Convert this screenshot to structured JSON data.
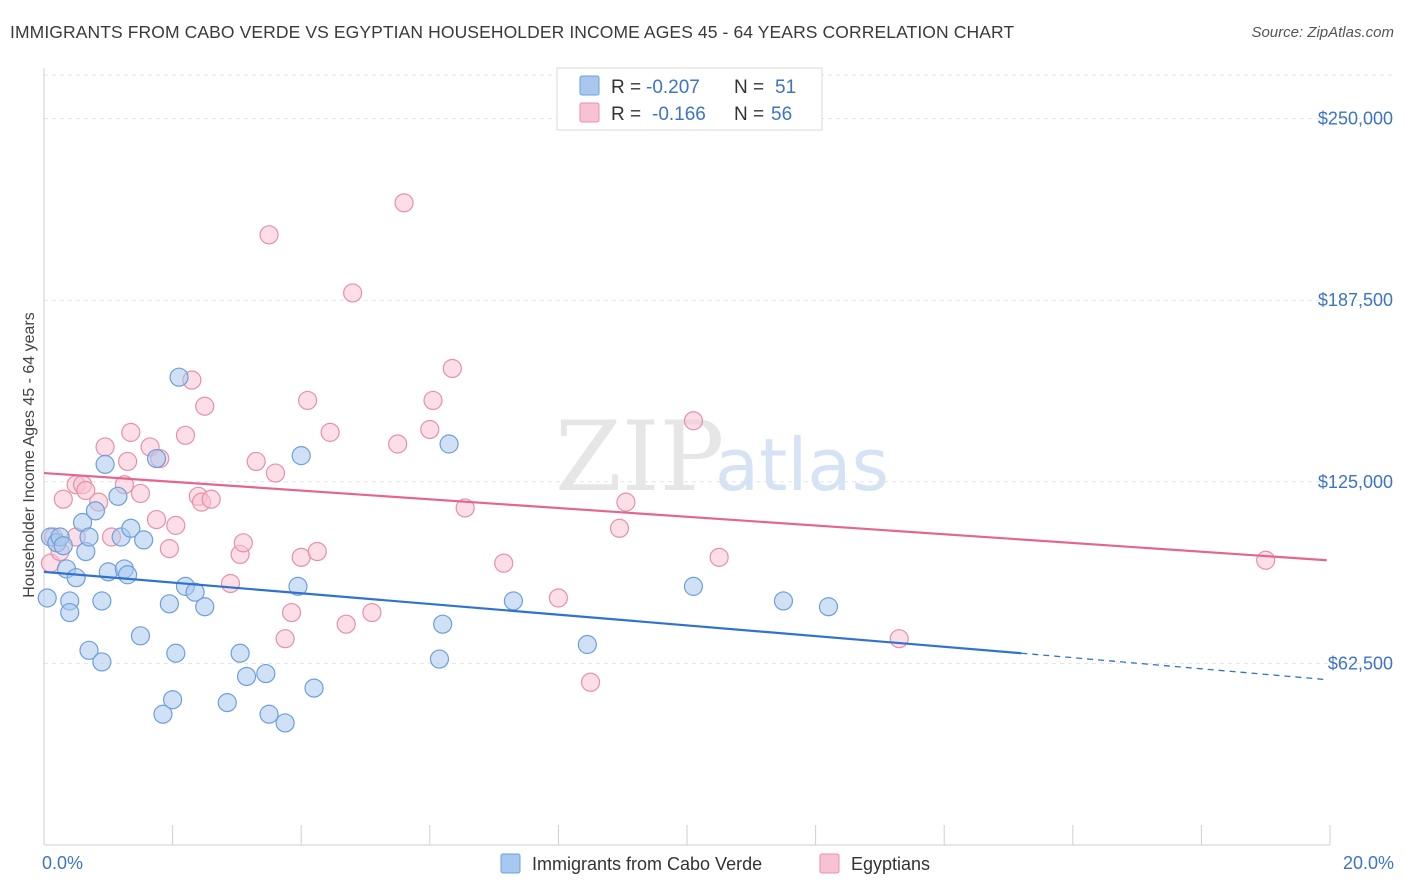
{
  "title": "IMMIGRANTS FROM CABO VERDE VS EGYPTIAN HOUSEHOLDER INCOME AGES 45 - 64 YEARS CORRELATION CHART",
  "source": "Source: ZipAtlas.com",
  "watermark": {
    "zip": "ZIP",
    "atlas": "atlas"
  },
  "legend": {
    "rows": [
      {
        "r_label": "R = ",
        "r_value": "-0.207",
        "n_label": "N = ",
        "n_value": "51",
        "color": "#a9c8ef",
        "stroke": "#6d9fdc"
      },
      {
        "r_label": "R = ",
        "r_value": "-0.166",
        "n_label": "N = ",
        "n_value": "56",
        "color": "#f7c2d1",
        "stroke": "#e890ab"
      }
    ]
  },
  "chart_data": {
    "type": "scatter",
    "title": "IMMIGRANTS FROM CABO VERDE VS EGYPTIAN HOUSEHOLDER INCOME AGES 45 - 64 YEARS CORRELATION CHART",
    "xlabel": "",
    "ylabel": "Householder Income Ages 45 - 64 years",
    "xlim": [
      0,
      20
    ],
    "ylim": [
      0,
      265000
    ],
    "x_tick_labels": [
      "0.0%",
      "20.0%"
    ],
    "y_ticks": [
      62500,
      125000,
      187500,
      250000
    ],
    "y_tick_labels": [
      "$62,500",
      "$125,000",
      "$187,500",
      "$250,000"
    ],
    "grid": true,
    "legend_position": "top-center",
    "series": [
      {
        "name": "Immigrants from Cabo Verde",
        "color": "#a9c8ef",
        "stroke": "#6d9fdc",
        "line_color": "#2f72cf",
        "trend": {
          "x0": 0,
          "y0": 94000,
          "x1": 15.2,
          "y1": 66000,
          "dash_to_x": 19.9,
          "dash_to_y": 57000
        },
        "points": [
          [
            0.05,
            85000
          ],
          [
            0.1,
            106000
          ],
          [
            0.2,
            104000
          ],
          [
            0.25,
            106000
          ],
          [
            0.3,
            103000
          ],
          [
            0.35,
            95000
          ],
          [
            0.4,
            84000
          ],
          [
            0.4,
            80000
          ],
          [
            0.5,
            92000
          ],
          [
            0.6,
            111000
          ],
          [
            0.65,
            101000
          ],
          [
            0.7,
            106000
          ],
          [
            0.7,
            67000
          ],
          [
            0.8,
            115000
          ],
          [
            0.9,
            84000
          ],
          [
            0.9,
            63000
          ],
          [
            0.95,
            131000
          ],
          [
            1.0,
            94000
          ],
          [
            1.15,
            120000
          ],
          [
            1.2,
            106000
          ],
          [
            1.25,
            95000
          ],
          [
            1.3,
            93000
          ],
          [
            1.35,
            109000
          ],
          [
            1.5,
            72000
          ],
          [
            1.55,
            105000
          ],
          [
            1.75,
            133000
          ],
          [
            1.85,
            45000
          ],
          [
            1.95,
            83000
          ],
          [
            2.0,
            50000
          ],
          [
            2.05,
            66000
          ],
          [
            2.1,
            161000
          ],
          [
            2.2,
            89000
          ],
          [
            2.35,
            87000
          ],
          [
            2.5,
            82000
          ],
          [
            2.85,
            49000
          ],
          [
            3.05,
            66000
          ],
          [
            3.15,
            58000
          ],
          [
            3.45,
            59000
          ],
          [
            3.5,
            45000
          ],
          [
            3.75,
            42000
          ],
          [
            3.95,
            89000
          ],
          [
            4.0,
            134000
          ],
          [
            4.2,
            54000
          ],
          [
            6.15,
            64000
          ],
          [
            6.2,
            76000
          ],
          [
            6.3,
            138000
          ],
          [
            7.3,
            84000
          ],
          [
            8.45,
            69000
          ],
          [
            10.1,
            89000
          ],
          [
            11.5,
            84000
          ],
          [
            12.2,
            82000
          ]
        ]
      },
      {
        "name": "Egyptians",
        "color": "#f7c2d1",
        "stroke": "#e890ab",
        "line_color": "#e36690",
        "trend": {
          "x0": 0,
          "y0": 128000,
          "x1": 19.95,
          "y1": 98000
        },
        "points": [
          [
            0.1,
            97000
          ],
          [
            0.15,
            106000
          ],
          [
            0.25,
            101000
          ],
          [
            0.3,
            119000
          ],
          [
            0.5,
            106000
          ],
          [
            0.5,
            124000
          ],
          [
            0.6,
            124000
          ],
          [
            0.65,
            122000
          ],
          [
            0.85,
            118000
          ],
          [
            0.95,
            137000
          ],
          [
            1.05,
            106000
          ],
          [
            1.25,
            124000
          ],
          [
            1.3,
            132000
          ],
          [
            1.35,
            142000
          ],
          [
            1.5,
            121000
          ],
          [
            1.65,
            137000
          ],
          [
            1.75,
            112000
          ],
          [
            1.8,
            133000
          ],
          [
            1.95,
            102000
          ],
          [
            2.05,
            110000
          ],
          [
            2.2,
            141000
          ],
          [
            2.3,
            160000
          ],
          [
            2.4,
            120000
          ],
          [
            2.45,
            118000
          ],
          [
            2.5,
            151000
          ],
          [
            2.6,
            119000
          ],
          [
            2.9,
            90000
          ],
          [
            3.05,
            100000
          ],
          [
            3.1,
            104000
          ],
          [
            3.3,
            132000
          ],
          [
            3.5,
            210000
          ],
          [
            3.6,
            128000
          ],
          [
            3.75,
            71000
          ],
          [
            3.85,
            80000
          ],
          [
            4.0,
            99000
          ],
          [
            4.1,
            153000
          ],
          [
            4.25,
            101000
          ],
          [
            4.45,
            142000
          ],
          [
            4.7,
            76000
          ],
          [
            4.8,
            190000
          ],
          [
            5.1,
            80000
          ],
          [
            5.5,
            138000
          ],
          [
            5.6,
            221000
          ],
          [
            6.0,
            143000
          ],
          [
            6.05,
            153000
          ],
          [
            6.35,
            164000
          ],
          [
            6.55,
            116000
          ],
          [
            7.15,
            97000
          ],
          [
            8.0,
            85000
          ],
          [
            8.5,
            56000
          ],
          [
            8.95,
            109000
          ],
          [
            9.05,
            118000
          ],
          [
            10.1,
            146000
          ],
          [
            10.5,
            99000
          ],
          [
            13.3,
            71000
          ],
          [
            19.0,
            98000
          ]
        ]
      }
    ]
  }
}
